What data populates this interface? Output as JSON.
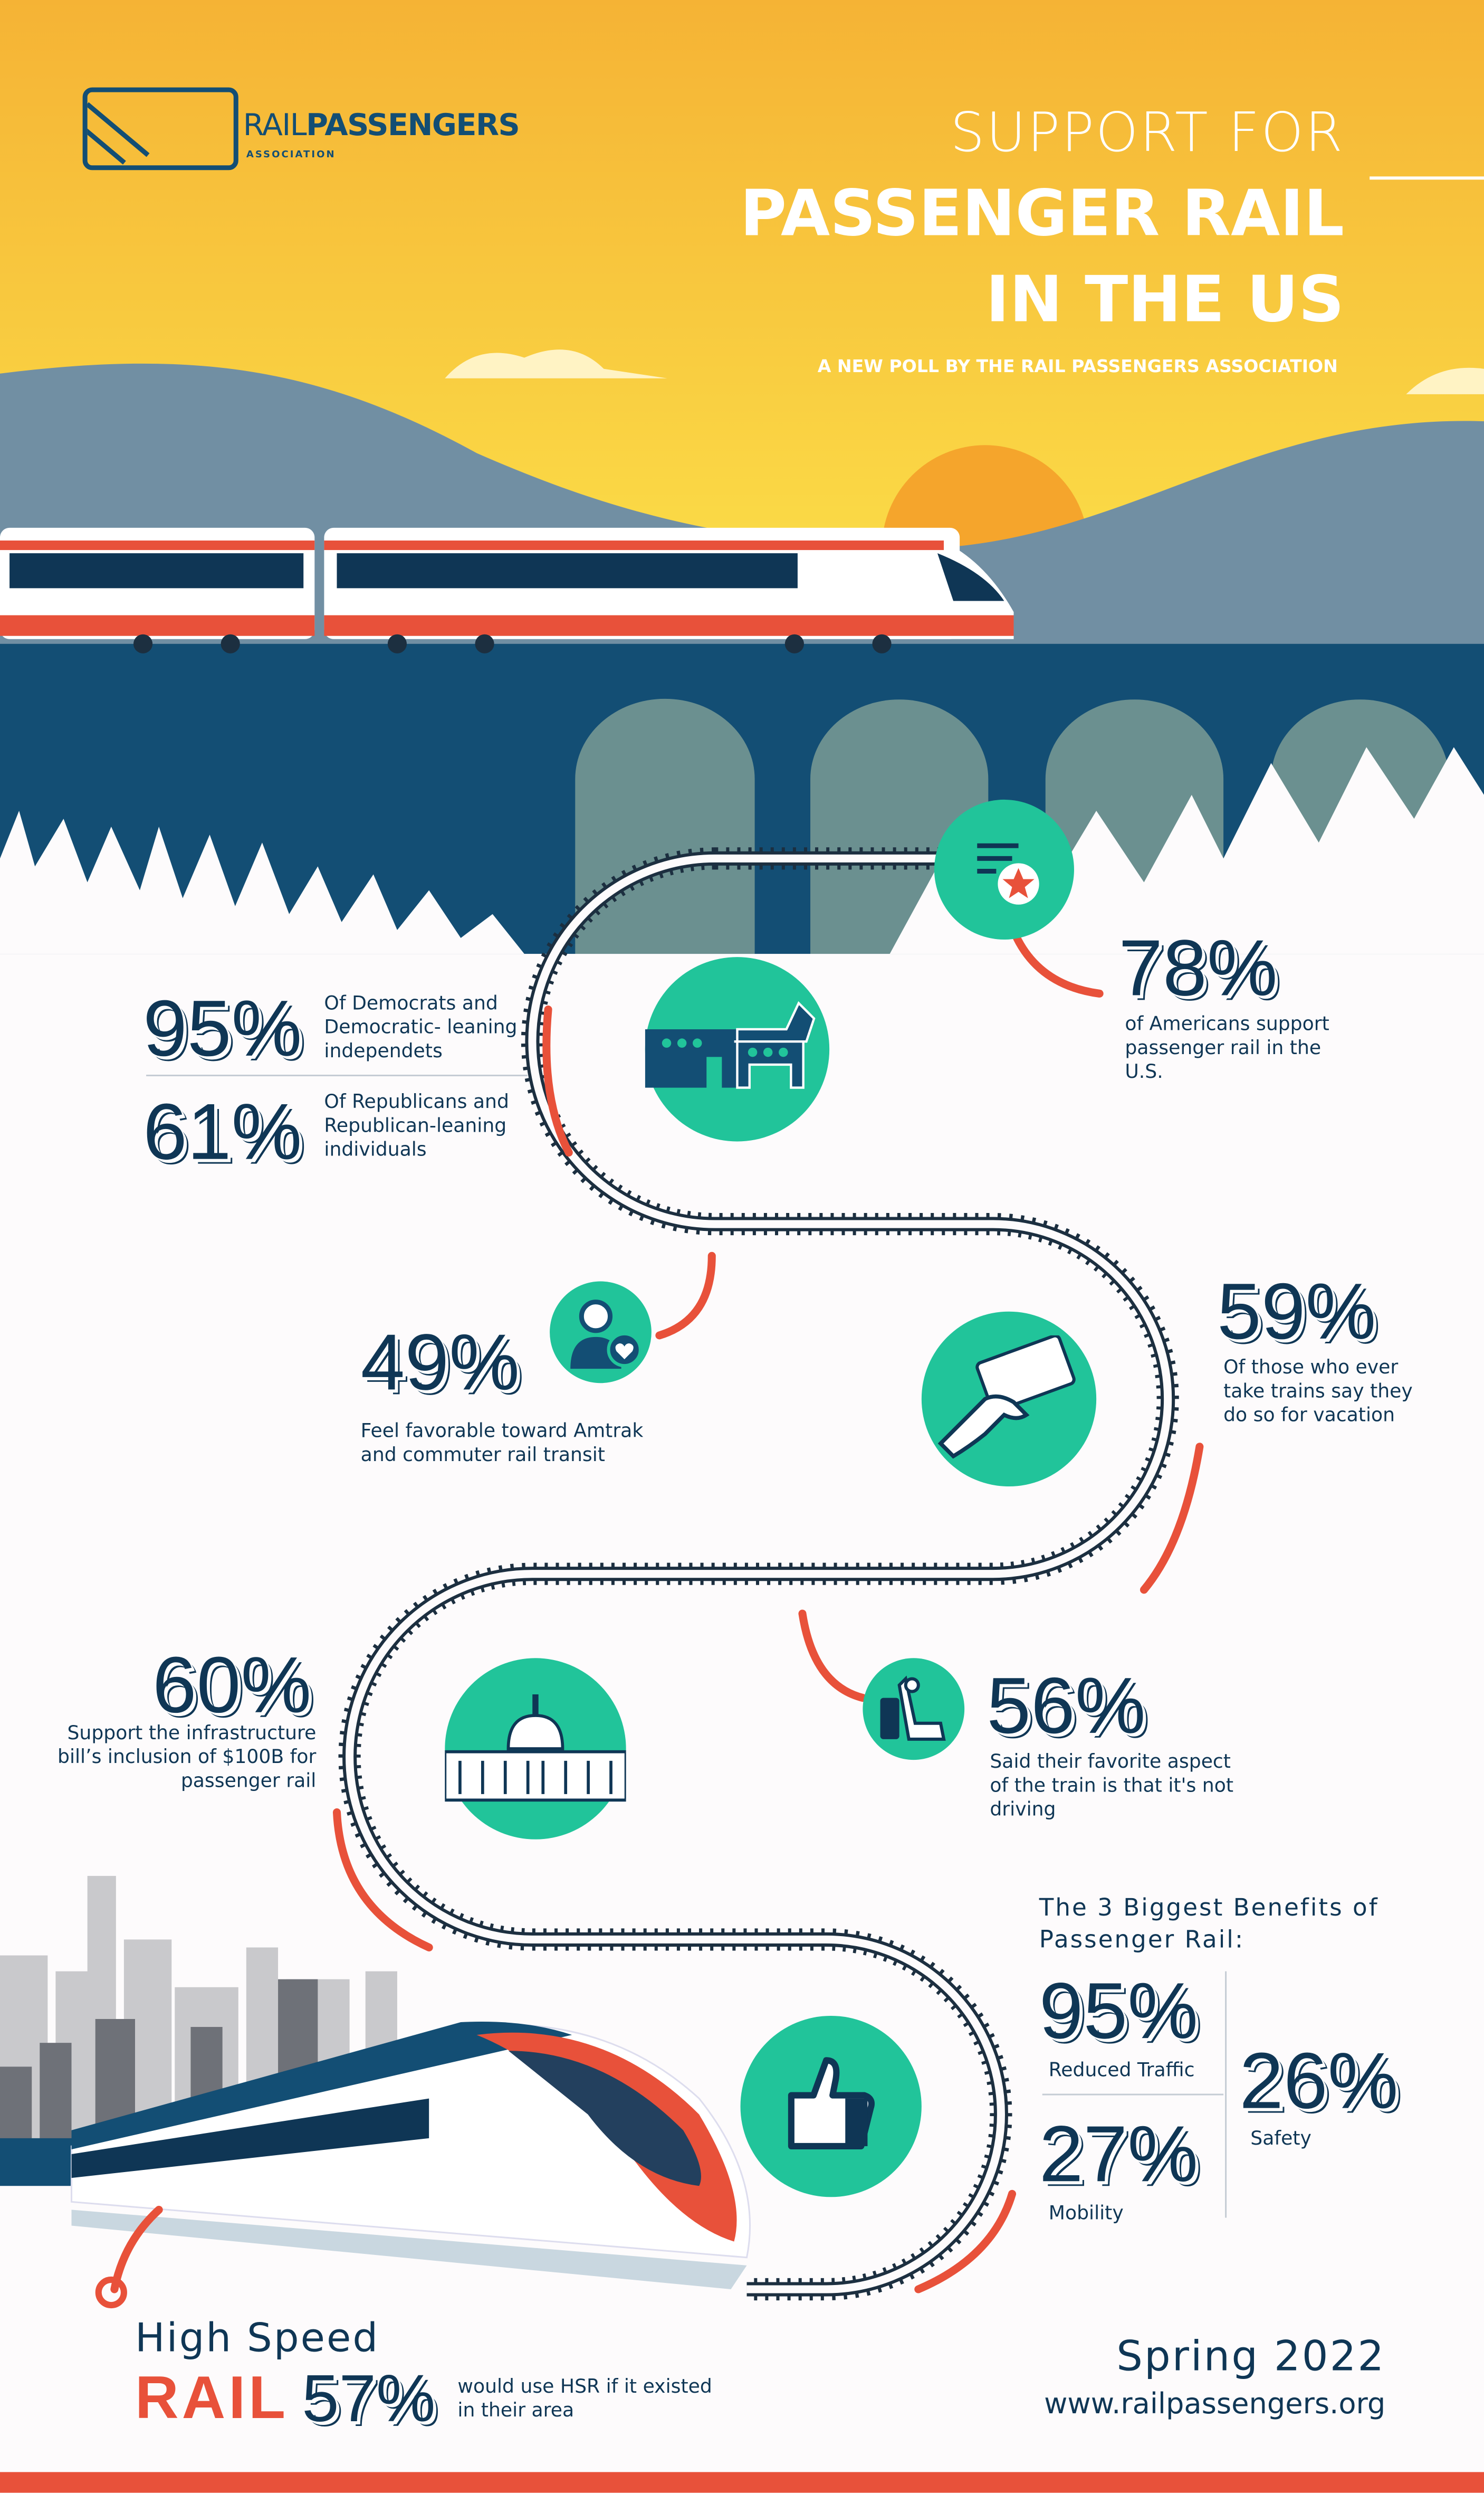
{
  "colors": {
    "navy": "#0f3655",
    "teal": "#21c49a",
    "red": "#e8513a",
    "sky_top": "#f5b335",
    "sky_bottom": "#fce34a",
    "bridge": "#134e74"
  },
  "logo": {
    "name_light": "RAIL",
    "name_bold": "PASSENGERS",
    "sub": "ASSOCIATION"
  },
  "header": {
    "line1": "SUPPORT FOR",
    "line2": "PASSENGER RAIL",
    "line3": "IN THE US",
    "subtitle": "A NEW POLL BY THE RAIL PASSENGERS ASSOCIATION"
  },
  "stats": {
    "americans": {
      "value": "78%",
      "text": "of Americans support passenger rail in the U.S.",
      "icon": "document-star-icon"
    },
    "democrats": {
      "value": "95%",
      "text": "Of Democrats and Democratic- leaning independets",
      "icon": "democrat-donkey-icon"
    },
    "republicans": {
      "value": "61%",
      "text": "Of Republicans and Republican-leaning individuals"
    },
    "amtrak": {
      "value": "49%",
      "text": "Feel favorable toward Amtrak and commuter rail transit",
      "icon": "person-heart-icon"
    },
    "vacation": {
      "value": "59%",
      "text": "Of those who ever take trains say they do so for vacation",
      "icon": "ticket-hand-icon"
    },
    "infrastructure": {
      "value": "60%",
      "text": "Support the infrastructure bill’s inclusion of $100B for passenger rail",
      "icon": "capitol-icon"
    },
    "not_driving": {
      "value": "56%",
      "text": "Said their favorite aspect of the train is that it's not driving",
      "icon": "train-seat-icon"
    }
  },
  "benefits": {
    "title": "The 3 Biggest Benefits of Passenger Rail:",
    "items": [
      {
        "value": "95%",
        "label": "Reduced Traffic"
      },
      {
        "value": "26%",
        "label": "Safety"
      },
      {
        "value": "27%",
        "label": "Mobility"
      }
    ],
    "icon": "thumbs-up-icon"
  },
  "hsr": {
    "line1": "High Speed",
    "line2": "RAIL",
    "value": "57%",
    "text": "would use HSR if it existed in their area"
  },
  "footer": {
    "date": "Spring 2022",
    "url": "www.railpassengers.org"
  }
}
